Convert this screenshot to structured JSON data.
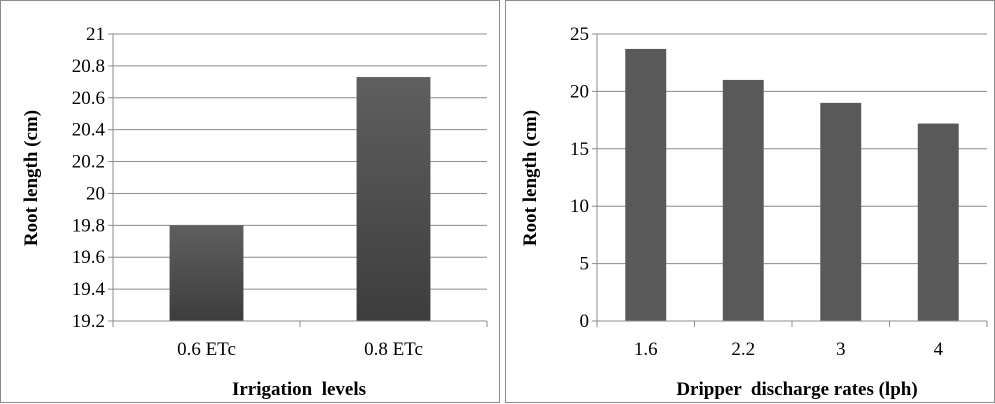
{
  "charts": [
    {
      "type": "bar",
      "xlabel": "Irrigation  levels",
      "ylabel": "Root length (cm)",
      "categories": [
        "0.6 ETc",
        "0.8 ETc"
      ],
      "values": [
        19.8,
        20.73
      ],
      "ylim": [
        19.2,
        21
      ],
      "yticks": [
        "19.2",
        "19.4",
        "19.6",
        "19.8",
        "20",
        "20.2",
        "20.4",
        "20.6",
        "20.8",
        "21"
      ],
      "grid": "horizontal",
      "bar_style": "gradient",
      "bar_color_top": "#5f5f5f",
      "bar_color_bottom": "#3d3d3d"
    },
    {
      "type": "bar",
      "xlabel": "Dripper  discharge rates (lph)",
      "ylabel": "Root length (cm)",
      "categories": [
        "1.6",
        "2.2",
        "3",
        "4"
      ],
      "values": [
        23.7,
        21.0,
        19.0,
        17.2
      ],
      "ylim": [
        0,
        25
      ],
      "yticks": [
        "0",
        "5",
        "10",
        "15",
        "20",
        "25"
      ],
      "grid": "horizontal",
      "bar_style": "solid",
      "bar_color": "#595959"
    }
  ],
  "chart_data": [
    {
      "type": "bar",
      "xlabel": "Irrigation  levels",
      "ylabel": "Root length (cm)",
      "categories": [
        "0.6 ETc",
        "0.8 ETc"
      ],
      "values": [
        19.8,
        20.73
      ],
      "ylim": [
        19.2,
        21
      ],
      "grid": true,
      "legend": "none"
    },
    {
      "type": "bar",
      "xlabel": "Dripper  discharge rates (lph)",
      "ylabel": "Root length (cm)",
      "categories": [
        "1.6",
        "2.2",
        "3",
        "4"
      ],
      "values": [
        23.7,
        21.0,
        19.0,
        17.2
      ],
      "ylim": [
        0,
        25
      ],
      "grid": true,
      "legend": "none"
    }
  ]
}
